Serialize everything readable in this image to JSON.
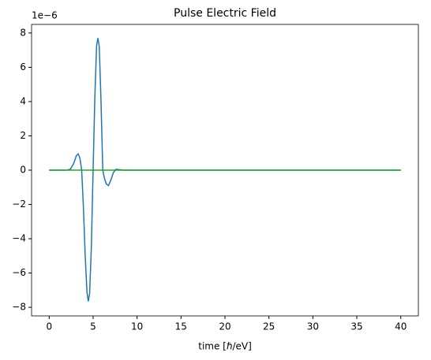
{
  "chart_data": {
    "type": "line",
    "title": "Pulse Electric Field",
    "xlabel": "time [ℏ/eV]",
    "y_offset_label": "1e−6",
    "xlim": [
      -2,
      42
    ],
    "ylim": [
      -8.5,
      8.5
    ],
    "xticks": [
      0,
      5,
      10,
      15,
      20,
      25,
      30,
      35,
      40
    ],
    "yticks": [
      {
        "value": -8,
        "label": "−8"
      },
      {
        "value": -6,
        "label": "−6"
      },
      {
        "value": -4,
        "label": "−4"
      },
      {
        "value": -2,
        "label": "−2"
      },
      0,
      2,
      4,
      6,
      8
    ],
    "series": [
      {
        "color": "#1f77b4",
        "x": [
          0,
          2,
          2.4,
          2.8,
          3.1,
          3.3,
          3.5,
          3.7,
          3.9,
          4.1,
          4.3,
          4.45,
          4.6,
          4.8,
          5.0,
          5.2,
          5.4,
          5.55,
          5.7,
          5.9,
          6.1,
          6.3,
          6.5,
          6.75,
          7.0,
          7.3,
          7.6,
          8.0,
          8.5,
          40
        ],
        "values": [
          0,
          0,
          0.05,
          0.4,
          0.85,
          0.95,
          0.7,
          0,
          -2.2,
          -5.0,
          -7.1,
          -7.65,
          -7.2,
          -4.5,
          0,
          4.3,
          7.3,
          7.7,
          7.2,
          4.0,
          0,
          -0.5,
          -0.8,
          -0.9,
          -0.6,
          -0.15,
          0.05,
          0.03,
          0,
          0
        ]
      },
      {
        "color": "#2ca02c",
        "x": [
          0,
          40
        ],
        "values": [
          0,
          0
        ]
      }
    ]
  }
}
